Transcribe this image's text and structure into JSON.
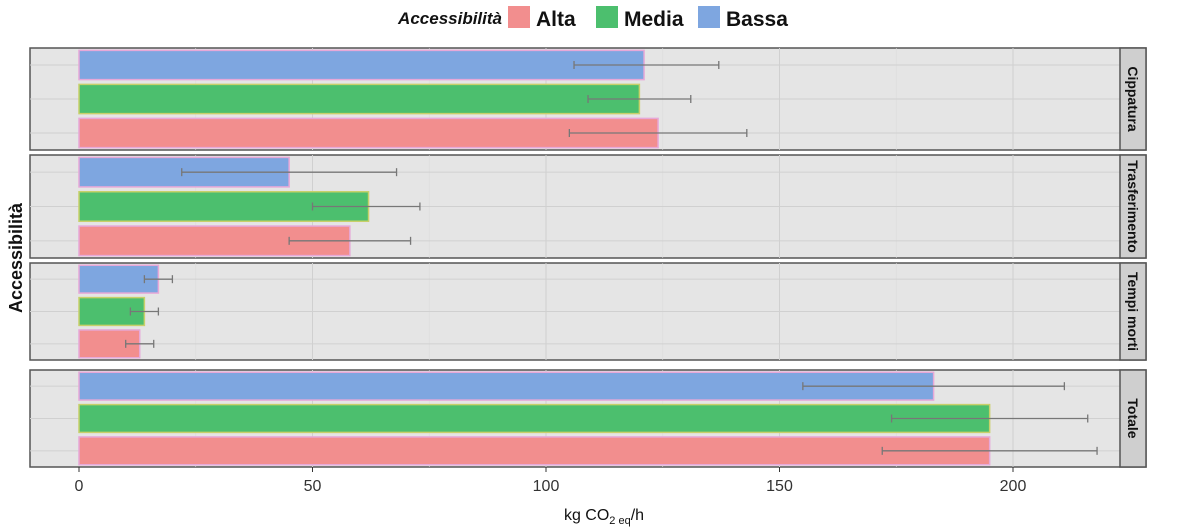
{
  "chart_data": {
    "type": "bar",
    "orientation": "horizontal",
    "legend": {
      "title": "Accessibilità",
      "position": "top",
      "items": [
        {
          "label": "Alta",
          "color": "#f28e8e"
        },
        {
          "label": "Media",
          "color": "#4cbf6e"
        },
        {
          "label": "Bassa",
          "color": "#7ea6e0"
        }
      ]
    },
    "xlabel": {
      "main": "kg CO",
      "sub": "2 eq",
      "tail": "/h"
    },
    "ylabel": "Accessibilità",
    "xlim": [
      0,
      235
    ],
    "xticks": [
      0,
      50,
      100,
      150,
      200
    ],
    "grid": true,
    "facets": [
      {
        "label": "Cippatura",
        "bars": [
          {
            "series": "Bassa",
            "value": 121,
            "err_low": 106,
            "err_high": 137
          },
          {
            "series": "Media",
            "value": 120,
            "err_low": 109,
            "err_high": 131
          },
          {
            "series": "Alta",
            "value": 124,
            "err_low": 105,
            "err_high": 143
          }
        ]
      },
      {
        "label": "Trasferimento",
        "bars": [
          {
            "series": "Bassa",
            "value": 45,
            "err_low": 22,
            "err_high": 68
          },
          {
            "series": "Media",
            "value": 62,
            "err_low": 50,
            "err_high": 73
          },
          {
            "series": "Alta",
            "value": 58,
            "err_low": 45,
            "err_high": 71
          }
        ]
      },
      {
        "label": "Tempi morti",
        "bars": [
          {
            "series": "Bassa",
            "value": 17,
            "err_low": 14,
            "err_high": 20
          },
          {
            "series": "Media",
            "value": 14,
            "err_low": 11,
            "err_high": 17
          },
          {
            "series": "Alta",
            "value": 13,
            "err_low": 10,
            "err_high": 16
          }
        ]
      },
      {
        "label": "Totale",
        "bars": [
          {
            "series": "Bassa",
            "value": 183,
            "err_low": 155,
            "err_high": 211
          },
          {
            "series": "Media",
            "value": 195,
            "err_low": 174,
            "err_high": 216
          },
          {
            "series": "Alta",
            "value": 195,
            "err_low": 172,
            "err_high": 218
          }
        ]
      }
    ]
  }
}
